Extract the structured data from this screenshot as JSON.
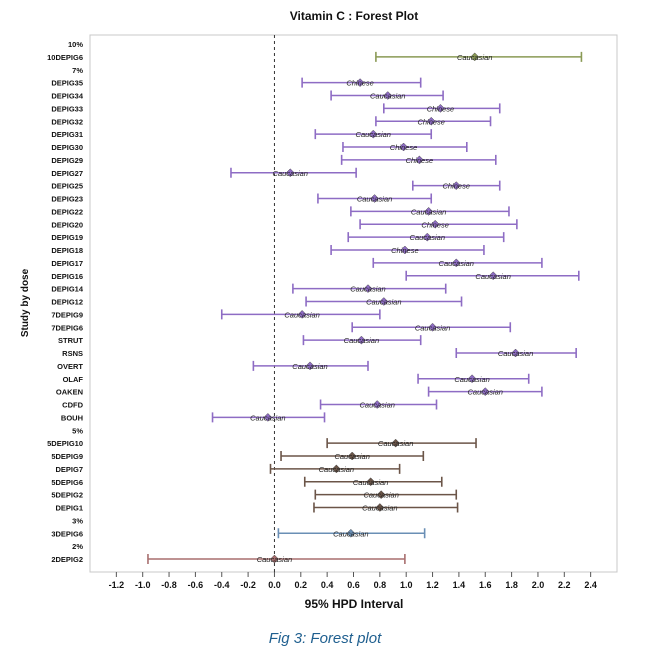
{
  "caption": "Fig 3: Forest plot",
  "chart_data": {
    "type": "forest",
    "title": "Vitamin C : Forest Plot",
    "xlabel": "95% HPD Interval",
    "ylabel": "Study by dose",
    "xlim": [
      -1.4,
      2.6
    ],
    "xticks": [
      "-1.2",
      "-1.0",
      "-0.8",
      "-0.6",
      "-0.4",
      "-0.2",
      "0.0",
      "0.2",
      "0.4",
      "0.6",
      "0.8",
      "1.0",
      "1.2",
      "1.4",
      "1.6",
      "1.8",
      "2.0",
      "2.2",
      "2.4"
    ],
    "reference_line": 0.0,
    "grid": false,
    "rows": [
      {
        "label": "10%"
      },
      {
        "label": "10DEPIG6",
        "est": 1.52,
        "lo": 0.77,
        "hi": 2.33,
        "text": "Caucasian",
        "color": "#8a9a55"
      },
      {
        "label": "7%"
      },
      {
        "label": "DEPIG35",
        "est": 0.65,
        "lo": 0.21,
        "hi": 1.11,
        "text": "Chinese",
        "color": "#8e6cc4"
      },
      {
        "label": "DEPIG34",
        "est": 0.86,
        "lo": 0.43,
        "hi": 1.28,
        "text": "Caucasian",
        "color": "#8e6cc4"
      },
      {
        "label": "DEPIG33",
        "est": 1.26,
        "lo": 0.83,
        "hi": 1.71,
        "text": "Chinese",
        "color": "#8e6cc4"
      },
      {
        "label": "DEPIG32",
        "est": 1.19,
        "lo": 0.77,
        "hi": 1.64,
        "text": "Chinese",
        "color": "#8e6cc4"
      },
      {
        "label": "DEPIG31",
        "est": 0.75,
        "lo": 0.31,
        "hi": 1.19,
        "text": "Caucasian",
        "color": "#8e6cc4"
      },
      {
        "label": "DEPIG30",
        "est": 0.98,
        "lo": 0.52,
        "hi": 1.46,
        "text": "Chinese",
        "color": "#8e6cc4"
      },
      {
        "label": "DEPIG29",
        "est": 1.1,
        "lo": 0.51,
        "hi": 1.68,
        "text": "Chinese",
        "color": "#8e6cc4"
      },
      {
        "label": "DEPIG27",
        "est": 0.12,
        "lo": -0.33,
        "hi": 0.62,
        "text": "Caucasian",
        "color": "#8e6cc4"
      },
      {
        "label": "DEPIG25",
        "est": 1.38,
        "lo": 1.05,
        "hi": 1.71,
        "text": "Chinese",
        "color": "#8e6cc4"
      },
      {
        "label": "DEPIG23",
        "est": 0.76,
        "lo": 0.33,
        "hi": 1.19,
        "text": "Caucasian",
        "color": "#8e6cc4"
      },
      {
        "label": "DEPIG22",
        "est": 1.17,
        "lo": 0.58,
        "hi": 1.78,
        "text": "Caucasian",
        "color": "#8e6cc4"
      },
      {
        "label": "DEPIG20",
        "est": 1.22,
        "lo": 0.65,
        "hi": 1.84,
        "text": "Chinese",
        "color": "#8e6cc4"
      },
      {
        "label": "DEPIG19",
        "est": 1.16,
        "lo": 0.56,
        "hi": 1.74,
        "text": "Caucasian",
        "color": "#8e6cc4"
      },
      {
        "label": "DEPIG18",
        "est": 0.99,
        "lo": 0.43,
        "hi": 1.59,
        "text": "Chinese",
        "color": "#8e6cc4"
      },
      {
        "label": "DEPIG17",
        "est": 1.38,
        "lo": 0.75,
        "hi": 2.03,
        "text": "Caucasian",
        "color": "#8e6cc4"
      },
      {
        "label": "DEPIG16",
        "est": 1.66,
        "lo": 1.0,
        "hi": 2.31,
        "text": "Caucasian",
        "color": "#8e6cc4"
      },
      {
        "label": "DEPIG14",
        "est": 0.71,
        "lo": 0.14,
        "hi": 1.3,
        "text": "Caucasian",
        "color": "#8e6cc4"
      },
      {
        "label": "DEPIG12",
        "est": 0.83,
        "lo": 0.24,
        "hi": 1.42,
        "text": "Caucasian",
        "color": "#8e6cc4"
      },
      {
        "label": "7DEPIG9",
        "est": 0.21,
        "lo": -0.4,
        "hi": 0.8,
        "text": "Caucasian",
        "color": "#8e6cc4"
      },
      {
        "label": "7DEPIG6",
        "est": 1.2,
        "lo": 0.59,
        "hi": 1.79,
        "text": "Caucasian",
        "color": "#8e6cc4"
      },
      {
        "label": "STRUT",
        "est": 0.66,
        "lo": 0.22,
        "hi": 1.11,
        "text": "Caucasian",
        "color": "#8e6cc4"
      },
      {
        "label": "RSNS",
        "est": 1.83,
        "lo": 1.38,
        "hi": 2.29,
        "text": "Caucasian",
        "color": "#8e6cc4"
      },
      {
        "label": "OVERT",
        "est": 0.27,
        "lo": -0.16,
        "hi": 0.71,
        "text": "Caucasian",
        "color": "#8e6cc4"
      },
      {
        "label": "OLAF",
        "est": 1.5,
        "lo": 1.09,
        "hi": 1.93,
        "text": "Caucasian",
        "color": "#8e6cc4"
      },
      {
        "label": "OAKEN",
        "est": 1.6,
        "lo": 1.17,
        "hi": 2.03,
        "text": "Caucasian",
        "color": "#8e6cc4"
      },
      {
        "label": "CDFD",
        "est": 0.78,
        "lo": 0.35,
        "hi": 1.23,
        "text": "Caucasian",
        "color": "#8e6cc4"
      },
      {
        "label": "BOUH",
        "est": -0.05,
        "lo": -0.47,
        "hi": 0.38,
        "text": "Caucasian",
        "color": "#8e6cc4"
      },
      {
        "label": "5%"
      },
      {
        "label": "5DEPIG10",
        "est": 0.92,
        "lo": 0.4,
        "hi": 1.53,
        "text": "Caucasian",
        "color": "#6b5548"
      },
      {
        "label": "5DEPIG9",
        "est": 0.59,
        "lo": 0.05,
        "hi": 1.13,
        "text": "Caucasian",
        "color": "#6b5548"
      },
      {
        "label": "DEPIG7",
        "est": 0.47,
        "lo": -0.03,
        "hi": 0.95,
        "text": "Caucasian",
        "color": "#6b5548"
      },
      {
        "label": "5DEPIG6",
        "est": 0.73,
        "lo": 0.23,
        "hi": 1.27,
        "text": "Caucasian",
        "color": "#6b5548"
      },
      {
        "label": "5DEPIG2",
        "est": 0.81,
        "lo": 0.31,
        "hi": 1.38,
        "text": "Caucasian",
        "color": "#6b5548"
      },
      {
        "label": "DEPIG1",
        "est": 0.8,
        "lo": 0.3,
        "hi": 1.39,
        "text": "Caucasian",
        "color": "#6b5548"
      },
      {
        "label": "3%"
      },
      {
        "label": "3DEPIG6",
        "est": 0.58,
        "lo": 0.03,
        "hi": 1.14,
        "text": "Caucasian",
        "color": "#6a8fb5"
      },
      {
        "label": "2%"
      },
      {
        "label": "2DEPIG2",
        "est": 0.0,
        "lo": -0.96,
        "hi": 0.99,
        "text": "Caucasian",
        "color": "#a86f6f"
      }
    ]
  }
}
